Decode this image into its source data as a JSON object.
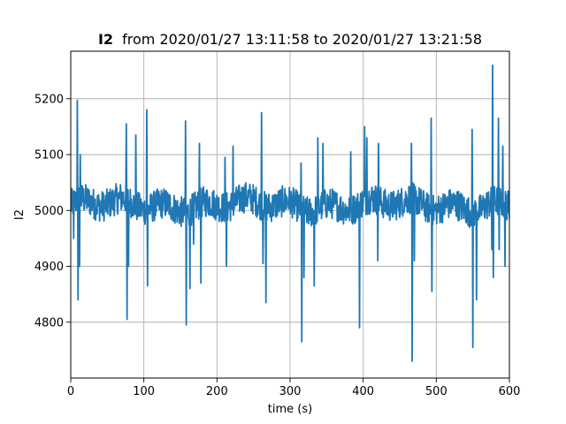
{
  "chart_data": {
    "type": "line",
    "title": "from 2020/01/27 13:11:58 to 2020/01/27 13:21:58",
    "title_prefix": "I2",
    "xlabel": "time (s)",
    "ylabel": "I2",
    "xlim": [
      0,
      600
    ],
    "ylim": [
      4700,
      5285
    ],
    "xticks": [
      0,
      100,
      200,
      300,
      400,
      500,
      600
    ],
    "yticks": [
      4800,
      4900,
      5000,
      5100,
      5200
    ],
    "grid": true,
    "series": [
      {
        "color": "#1f77b4",
        "baseline": 5010,
        "noise_amplitude": 28,
        "spikes": [
          {
            "x": 4,
            "y": 4950
          },
          {
            "x": 9,
            "y": 5197
          },
          {
            "x": 10,
            "y": 4840
          },
          {
            "x": 12,
            "y": 4900
          },
          {
            "x": 13,
            "y": 5100
          },
          {
            "x": 76,
            "y": 5155
          },
          {
            "x": 77,
            "y": 4805
          },
          {
            "x": 79,
            "y": 4900
          },
          {
            "x": 89,
            "y": 5135
          },
          {
            "x": 100,
            "y": 4990
          },
          {
            "x": 104,
            "y": 5180
          },
          {
            "x": 105,
            "y": 4865
          },
          {
            "x": 157,
            "y": 5160
          },
          {
            "x": 158,
            "y": 4795
          },
          {
            "x": 163,
            "y": 4860
          },
          {
            "x": 168,
            "y": 4940
          },
          {
            "x": 176,
            "y": 5120
          },
          {
            "x": 178,
            "y": 4870
          },
          {
            "x": 211,
            "y": 5095
          },
          {
            "x": 213,
            "y": 4900
          },
          {
            "x": 222,
            "y": 5115
          },
          {
            "x": 261,
            "y": 5175
          },
          {
            "x": 263,
            "y": 4905
          },
          {
            "x": 267,
            "y": 4835
          },
          {
            "x": 315,
            "y": 5085
          },
          {
            "x": 316,
            "y": 4765
          },
          {
            "x": 319,
            "y": 4880
          },
          {
            "x": 333,
            "y": 4865
          },
          {
            "x": 338,
            "y": 5130
          },
          {
            "x": 345,
            "y": 5120
          },
          {
            "x": 383,
            "y": 5105
          },
          {
            "x": 395,
            "y": 4790
          },
          {
            "x": 402,
            "y": 5150
          },
          {
            "x": 405,
            "y": 5130
          },
          {
            "x": 420,
            "y": 4910
          },
          {
            "x": 421,
            "y": 5120
          },
          {
            "x": 466,
            "y": 5120
          },
          {
            "x": 467,
            "y": 4730
          },
          {
            "x": 470,
            "y": 4910
          },
          {
            "x": 493,
            "y": 5165
          },
          {
            "x": 494,
            "y": 4855
          },
          {
            "x": 549,
            "y": 5145
          },
          {
            "x": 550,
            "y": 4755
          },
          {
            "x": 555,
            "y": 4840
          },
          {
            "x": 576,
            "y": 4930
          },
          {
            "x": 577,
            "y": 5260
          },
          {
            "x": 578,
            "y": 4880
          },
          {
            "x": 585,
            "y": 5165
          },
          {
            "x": 586,
            "y": 4930
          },
          {
            "x": 591,
            "y": 5115
          },
          {
            "x": 594,
            "y": 4900
          }
        ]
      }
    ]
  }
}
